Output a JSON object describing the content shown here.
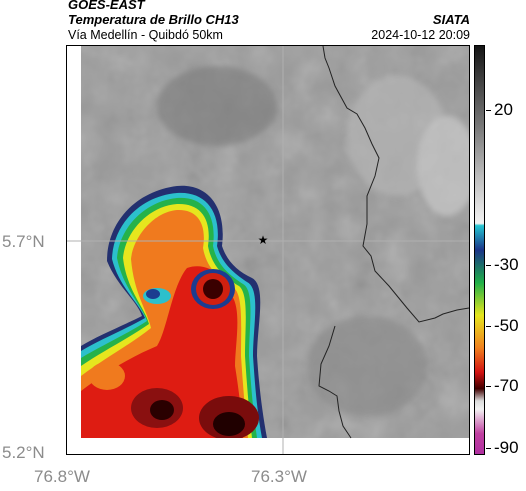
{
  "header": {
    "satellite": "GOES-EAST",
    "product": "Temperatura de Brillo CH13",
    "region": "Vía Medellín - Quibdó 50km",
    "org": "SIATA",
    "datetime": "2024-10-12 20:09"
  },
  "axes": {
    "lat_labels": [
      "5.7°N",
      "5.2°N"
    ],
    "lon_labels": [
      "76.8°W",
      "76.3°W"
    ]
  },
  "colorbar": {
    "labels": [
      "20",
      "-30",
      "-50",
      "-70",
      "-90"
    ],
    "colors": [
      "#2a2a2a",
      "#b5b5b5",
      "#e6e6e6",
      "#1ec0c8",
      "#1c3b8c",
      "#22b84a",
      "#e8e820",
      "#f08020",
      "#d01010",
      "#400000",
      "#ffffff",
      "#c040a0"
    ]
  },
  "map": {
    "marker": "station-star-icon",
    "cloud_colors": {
      "cold_core": "#3a0000",
      "red": "#e02010",
      "orange": "#f07a20",
      "yellow": "#e8e020",
      "green": "#20b040",
      "blue": "#1c3c90",
      "cyan": "#30c0d0",
      "ground": "#9a9a9a"
    }
  }
}
